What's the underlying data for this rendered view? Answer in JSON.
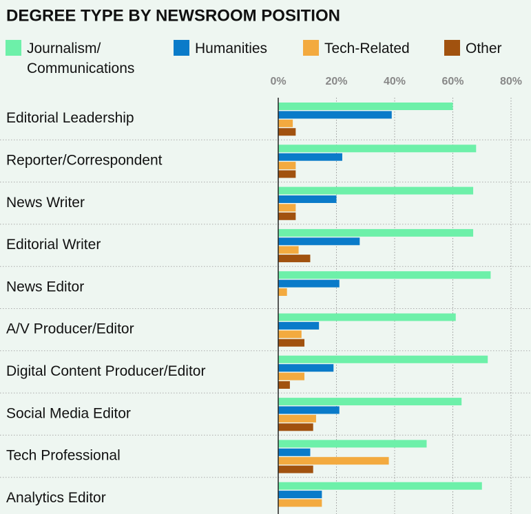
{
  "chart_data": {
    "type": "bar",
    "orientation": "horizontal",
    "title": "DEGREE TYPE BY NEWSROOM POSITION",
    "categories": [
      "Editorial Leadership",
      "Reporter/Correspondent",
      "News Writer",
      "Editorial Writer",
      "News Editor",
      "A/V Producer/Editor",
      "Digital Content Producer/Editor",
      "Social Media Editor",
      "Tech Professional",
      "Analytics Editor"
    ],
    "series": [
      {
        "name": "Journalism/ Communications",
        "color": "#6df0a9",
        "values": [
          60,
          68,
          67,
          67,
          73,
          61,
          72,
          63,
          51,
          70
        ]
      },
      {
        "name": "Humanities",
        "color": "#0a7bc9",
        "values": [
          39,
          22,
          20,
          28,
          21,
          14,
          19,
          21,
          11,
          15
        ]
      },
      {
        "name": "Tech-Related",
        "color": "#f3aa3f",
        "values": [
          5,
          6,
          6,
          7,
          3,
          8,
          9,
          13,
          38,
          15
        ]
      },
      {
        "name": "Other",
        "color": "#a1520f",
        "values": [
          6,
          6,
          6,
          11,
          null,
          9,
          4,
          12,
          12,
          null
        ]
      }
    ],
    "xlim": [
      0,
      80
    ],
    "xticks": [
      {
        "value": 0,
        "label": "0%"
      },
      {
        "value": 20,
        "label": "20%"
      },
      {
        "value": 40,
        "label": "40%"
      },
      {
        "value": 60,
        "label": "60%"
      },
      {
        "value": 80,
        "label": "80%"
      }
    ],
    "grid": true
  }
}
